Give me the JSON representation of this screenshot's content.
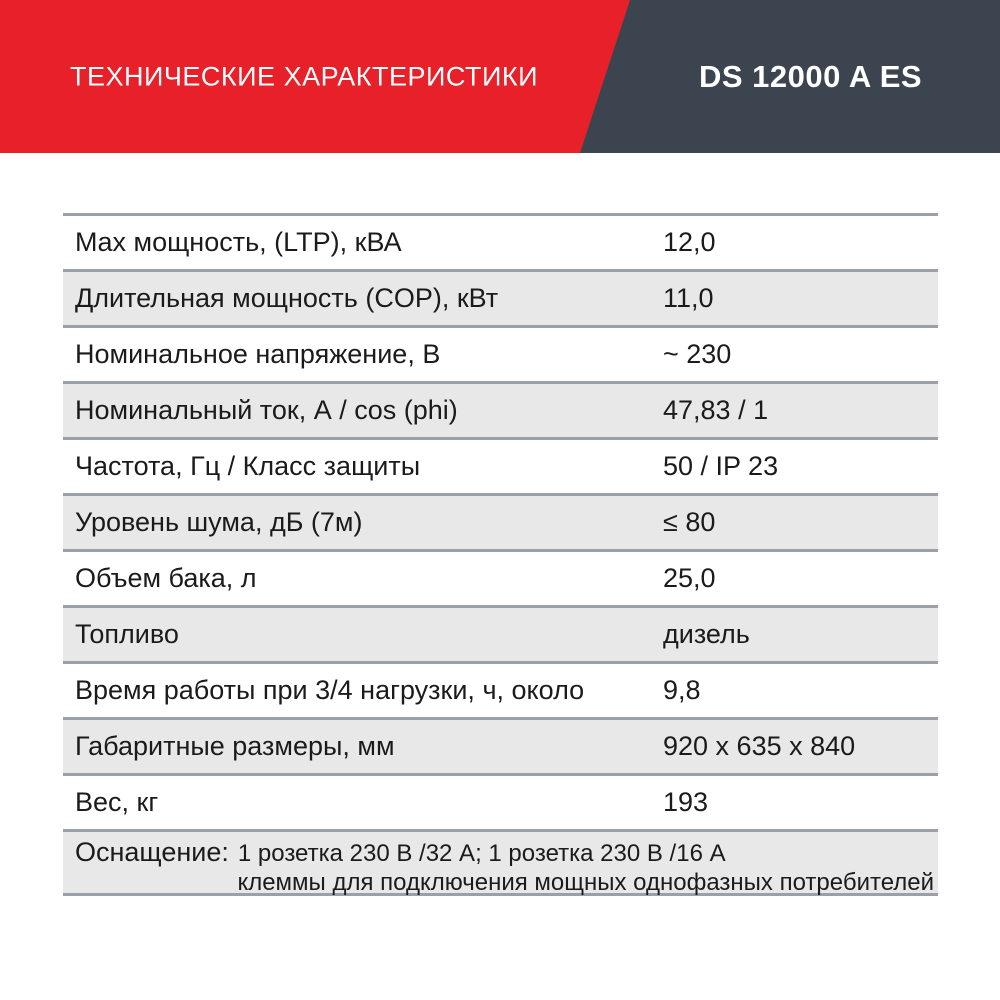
{
  "header": {
    "title": "ТЕХНИЧЕСКИЕ ХАРАКТЕРИСТИКИ",
    "model": "DS 12000 A ES"
  },
  "table": {
    "rows": [
      {
        "label": "Max мощность, (LTP), кВА",
        "value": "12,0"
      },
      {
        "label": "Длительная мощность (COP), кВт",
        "value": "11,0"
      },
      {
        "label": "Номинальное напряжение, В",
        "value": "~ 230"
      },
      {
        "label": "Номинальный ток, А / cos (phi)",
        "value": "47,83 / 1"
      },
      {
        "label": "Частота, Гц / Класс защиты",
        "value": "50 / IP 23"
      },
      {
        "label": "Уровень шума, дБ (7м)",
        "value": "≤ 80"
      },
      {
        "label": "Объем бака, л",
        "value": "25,0"
      },
      {
        "label": "Топливо",
        "value": "дизель"
      },
      {
        "label": "Время работы при 3/4 нагрузки, ч, около",
        "value": "9,8"
      },
      {
        "label": "Габаритные размеры, мм",
        "value": "920 x 635 x 840"
      },
      {
        "label": "Вес, кг",
        "value": "193"
      }
    ],
    "equipment": {
      "label": "Оснащение:",
      "line1": "1 розетка 230 В /32 А; 1 розетка 230 В /16 А",
      "line2": "клеммы для подключения мощных однофазных потребителей"
    }
  },
  "colors": {
    "accent_red": "#e8202a",
    "header_slate": "#3c4450",
    "row_alt_gray": "#e8e8e8",
    "separator_gray": "#9aa0a8",
    "text": "#1b1b1b"
  }
}
